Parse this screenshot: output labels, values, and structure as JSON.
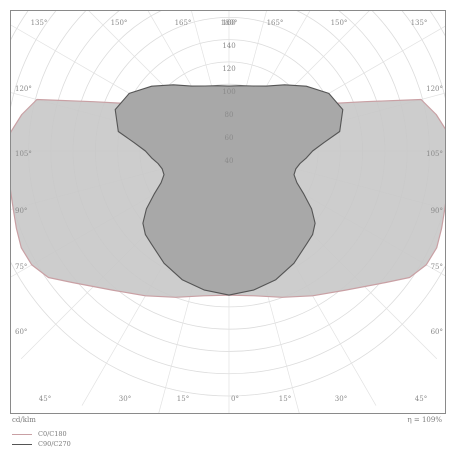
{
  "chart_data": {
    "type": "polar",
    "unit_label": "cd/klm",
    "efficiency_label": "η = 109%",
    "radial_ticks": [
      "160",
      "140",
      "120",
      "100",
      "80",
      "60",
      "40"
    ],
    "rmax": 170,
    "angle_labels": {
      "top": [
        "135°",
        "150°",
        "165°",
        "180°",
        "165°",
        "150°",
        "135°"
      ],
      "sides": [
        "120°",
        "105°",
        "90°",
        "75°",
        "60°"
      ],
      "bottom": [
        "45°",
        "30°",
        "15°",
        "0°",
        "15°",
        "30°",
        "45°"
      ]
    },
    "series": [
      {
        "name": "C0/C180",
        "color": "#c9a0a4",
        "fill": "#c8c8c8",
        "angles_deg": [
          0,
          10,
          20,
          30,
          40,
          50,
          55,
          60,
          65,
          70,
          75,
          80,
          85,
          90,
          95,
          100,
          105,
          110,
          115,
          120,
          130,
          140,
          150,
          160,
          170,
          180
        ],
        "values": [
          100,
          102,
          108,
          116,
          126,
          142,
          153,
          158,
          159,
          157,
          155,
          154,
          155,
          155,
          152,
          146,
          138,
          100,
          78,
          66,
          56,
          50,
          47,
          45,
          44,
          44
        ]
      },
      {
        "name": "C90/C270",
        "color": "#555555",
        "fill": "#a8a8a8",
        "angles_deg": [
          0,
          10,
          20,
          30,
          40,
          45,
          50,
          55,
          60,
          65,
          70,
          75,
          80,
          85,
          90,
          95,
          100,
          110,
          120,
          130,
          140,
          150,
          160,
          170,
          180
        ],
        "values": [
          100,
          98,
          95,
          90,
          84,
          82,
          78,
          70,
          60,
          52,
          48,
          48,
          50,
          54,
          58,
          66,
          78,
          84,
          80,
          70,
          60,
          52,
          48,
          46,
          45
        ]
      }
    ]
  }
}
